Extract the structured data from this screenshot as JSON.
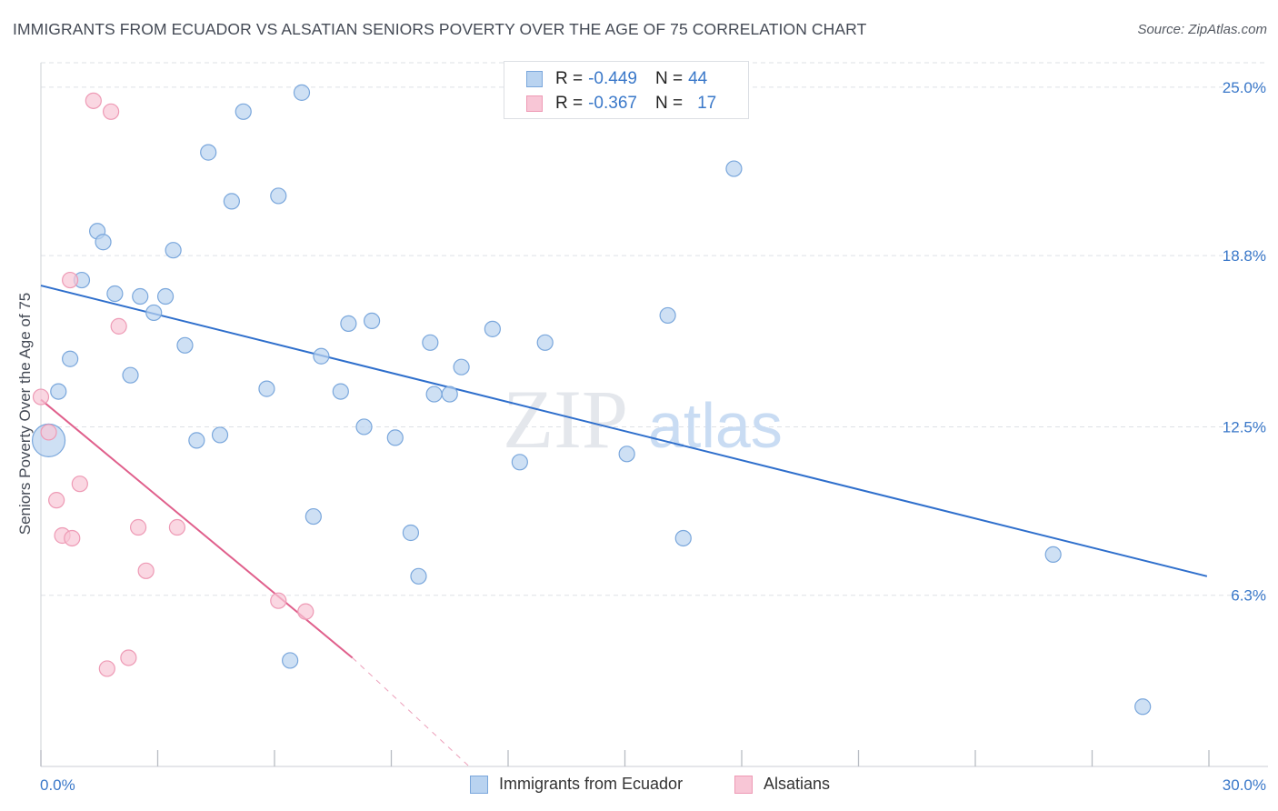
{
  "header": {
    "title": "IMMIGRANTS FROM ECUADOR VS ALSATIAN SENIORS POVERTY OVER THE AGE OF 75 CORRELATION CHART",
    "source": "Source: ZipAtlas.com"
  },
  "watermark": {
    "zip": "ZIP",
    "atlas": "atlas"
  },
  "legend_top": {
    "rows": [
      {
        "r_label": "R =",
        "r_value": "-0.449",
        "n_label": "N =",
        "n_value": "44"
      },
      {
        "r_label": "R =",
        "r_value": "-0.367",
        "n_label": "N =",
        "n_value": "17"
      }
    ]
  },
  "legend_bottom": {
    "items": [
      {
        "label": "Immigrants from Ecuador"
      },
      {
        "label": "Alsatians"
      }
    ]
  },
  "colors": {
    "blue_fill": "#b9d3f0",
    "blue_stroke": "#7aa7dc",
    "blue_line": "#2f6fcc",
    "pink_fill": "#f8c6d6",
    "pink_stroke": "#ee9ab5",
    "pink_line": "#e0608c",
    "axis_label": "#3a78c9",
    "grid": "#dde1e6"
  },
  "chart_data": {
    "type": "scatter",
    "title": "IMMIGRANTS FROM ECUADOR VS ALSATIAN SENIORS POVERTY OVER THE AGE OF 75 CORRELATION CHART",
    "xlabel": "",
    "ylabel": "Seniors Poverty Over the Age of 75",
    "xlim": [
      0,
      30
    ],
    "ylim": [
      0,
      25.9
    ],
    "x_tick_labels": [
      "0.0%",
      "30.0%"
    ],
    "y_ticks": [
      6.3,
      12.5,
      18.8,
      25.0
    ],
    "y_tick_labels": [
      "6.3%",
      "12.5%",
      "18.8%",
      "25.0%"
    ],
    "grid": true,
    "legend_position": "top-center",
    "series": [
      {
        "name": "Immigrants from Ecuador",
        "r": -0.449,
        "n": 44,
        "trend": {
          "x0": 0,
          "y0": 17.7,
          "x1": 29.95,
          "y1": 7.0
        },
        "points": [
          {
            "x": 0.2,
            "y": 12.0,
            "big": true
          },
          {
            "x": 0.45,
            "y": 13.8
          },
          {
            "x": 0.75,
            "y": 15.0
          },
          {
            "x": 1.05,
            "y": 17.9
          },
          {
            "x": 1.45,
            "y": 19.7
          },
          {
            "x": 1.6,
            "y": 19.3
          },
          {
            "x": 1.9,
            "y": 17.4
          },
          {
            "x": 2.3,
            "y": 14.4
          },
          {
            "x": 2.55,
            "y": 17.3
          },
          {
            "x": 2.9,
            "y": 16.7
          },
          {
            "x": 3.2,
            "y": 17.3
          },
          {
            "x": 3.4,
            "y": 19.0
          },
          {
            "x": 3.7,
            "y": 15.5
          },
          {
            "x": 4.0,
            "y": 12.0
          },
          {
            "x": 4.3,
            "y": 22.6
          },
          {
            "x": 4.6,
            "y": 12.2
          },
          {
            "x": 4.9,
            "y": 20.8
          },
          {
            "x": 5.2,
            "y": 24.1
          },
          {
            "x": 5.8,
            "y": 13.9
          },
          {
            "x": 6.1,
            "y": 21.0
          },
          {
            "x": 6.4,
            "y": 3.9
          },
          {
            "x": 6.7,
            "y": 24.8
          },
          {
            "x": 7.0,
            "y": 9.2
          },
          {
            "x": 7.2,
            "y": 15.1
          },
          {
            "x": 7.7,
            "y": 13.8
          },
          {
            "x": 7.9,
            "y": 16.3
          },
          {
            "x": 8.3,
            "y": 12.5
          },
          {
            "x": 8.5,
            "y": 16.4
          },
          {
            "x": 9.1,
            "y": 12.1
          },
          {
            "x": 9.5,
            "y": 8.6
          },
          {
            "x": 9.7,
            "y": 7.0
          },
          {
            "x": 10.0,
            "y": 15.6
          },
          {
            "x": 10.1,
            "y": 13.7
          },
          {
            "x": 10.5,
            "y": 13.7
          },
          {
            "x": 10.8,
            "y": 14.7
          },
          {
            "x": 11.6,
            "y": 16.1
          },
          {
            "x": 12.3,
            "y": 11.2
          },
          {
            "x": 12.95,
            "y": 15.6
          },
          {
            "x": 15.05,
            "y": 11.5
          },
          {
            "x": 16.1,
            "y": 16.6
          },
          {
            "x": 16.5,
            "y": 8.4
          },
          {
            "x": 17.8,
            "y": 22.0
          },
          {
            "x": 26.0,
            "y": 7.8
          },
          {
            "x": 28.3,
            "y": 2.2
          }
        ]
      },
      {
        "name": "Alsatians",
        "r": -0.367,
        "n": 17,
        "trend": {
          "x0": 0,
          "y0": 13.5,
          "x1": 8.0,
          "y1": 4.0,
          "dash_x1": 11.0,
          "dash_y1": 0.0
        },
        "points": [
          {
            "x": 0.0,
            "y": 13.6
          },
          {
            "x": 0.2,
            "y": 12.3
          },
          {
            "x": 0.4,
            "y": 9.8
          },
          {
            "x": 0.55,
            "y": 8.5
          },
          {
            "x": 0.8,
            "y": 8.4
          },
          {
            "x": 0.75,
            "y": 17.9
          },
          {
            "x": 1.0,
            "y": 10.4
          },
          {
            "x": 1.35,
            "y": 24.5
          },
          {
            "x": 1.7,
            "y": 3.6
          },
          {
            "x": 1.8,
            "y": 24.1
          },
          {
            "x": 2.0,
            "y": 16.2
          },
          {
            "x": 2.25,
            "y": 4.0
          },
          {
            "x": 2.5,
            "y": 8.8
          },
          {
            "x": 2.7,
            "y": 7.2
          },
          {
            "x": 3.5,
            "y": 8.8
          },
          {
            "x": 6.1,
            "y": 6.1
          },
          {
            "x": 6.8,
            "y": 5.7
          }
        ]
      }
    ]
  }
}
